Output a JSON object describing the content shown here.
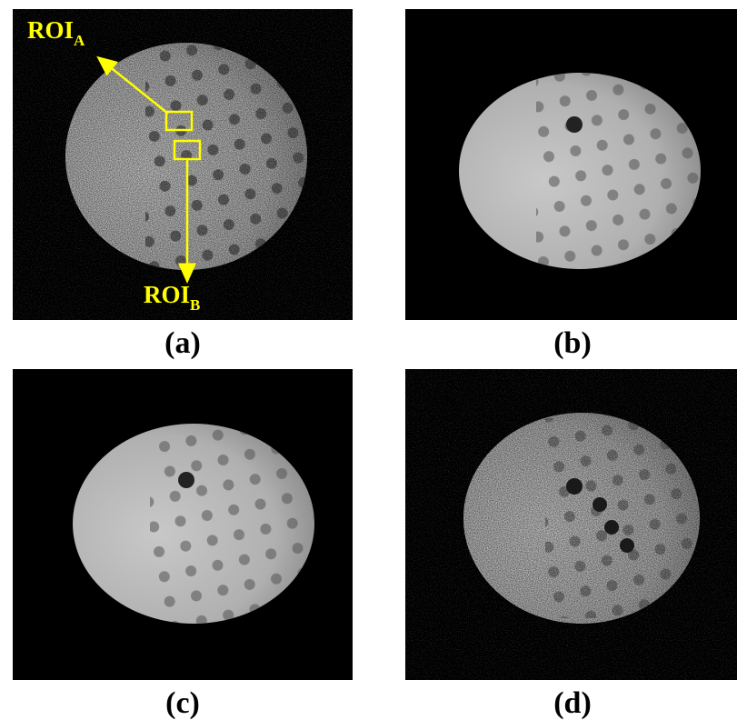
{
  "panels": [
    {
      "label": "(a)"
    },
    {
      "label": "(b)"
    },
    {
      "label": "(c)"
    },
    {
      "label": "(d)"
    }
  ],
  "annotations": {
    "roi_a": {
      "text": "ROI",
      "subscript": "A"
    },
    "roi_b": {
      "text": "ROI",
      "subscript": "B"
    }
  }
}
